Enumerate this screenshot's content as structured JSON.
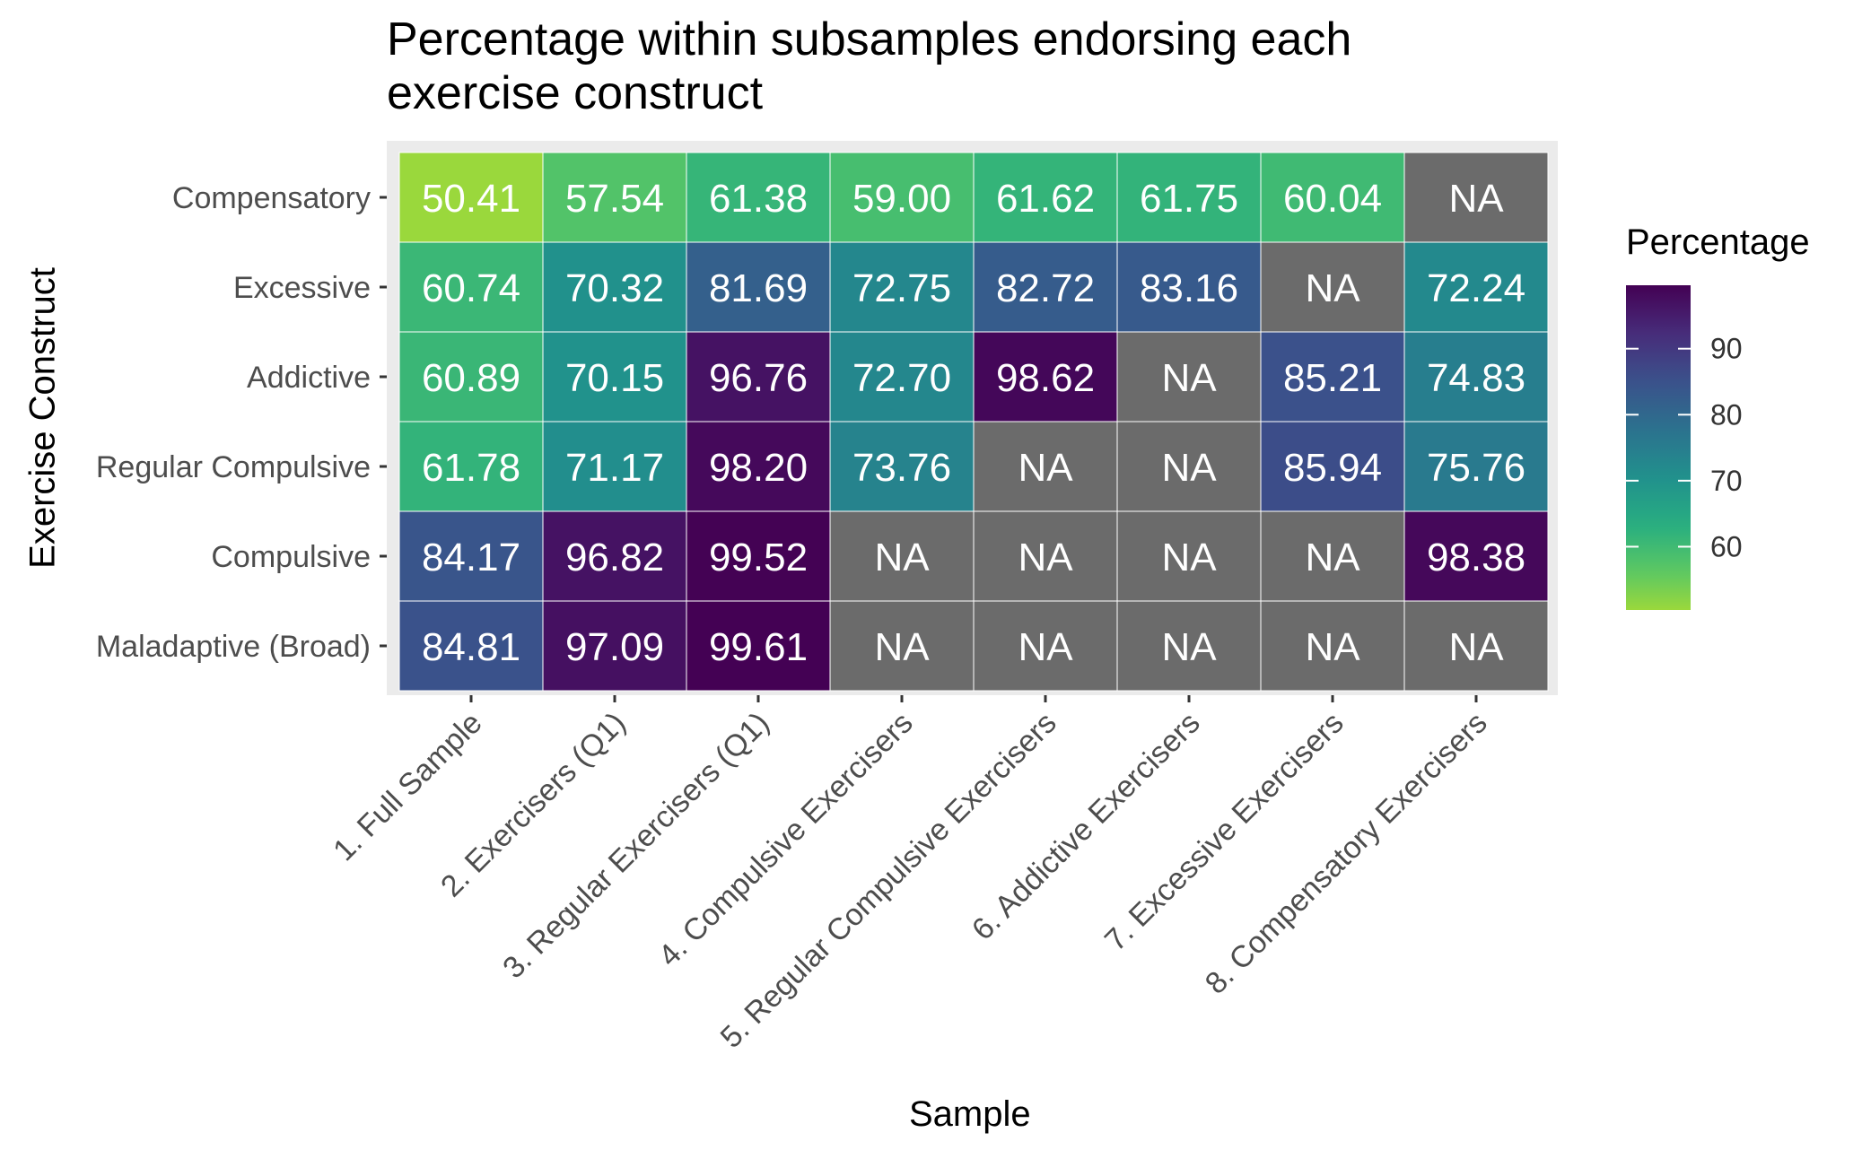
{
  "chart_data": {
    "type": "heatmap",
    "title": "Percentage within subsamples endorsing each exercise construct",
    "title_lines": [
      "Percentage within subsamples endorsing each",
      "exercise construct"
    ],
    "xlabel": "Sample",
    "ylabel": "Exercise Construct",
    "x_categories": [
      "1. Full Sample",
      "2. Exercisers (Q1)",
      "3. Regular Exercisers (Q1)",
      "4. Compulsive Exercisers",
      "5. Regular Compulsive Exercisers",
      "6. Addictive Exercisers",
      "7. Excessive Exercisers",
      "8. Compensatory Exercisers"
    ],
    "y_categories": [
      "Compensatory",
      "Excessive",
      "Addictive",
      "Regular Compulsive",
      "Compulsive",
      "Maladaptive (Broad)"
    ],
    "values": [
      [
        50.41,
        57.54,
        61.38,
        59.0,
        61.62,
        61.75,
        60.04,
        null
      ],
      [
        60.74,
        70.32,
        81.69,
        72.75,
        82.72,
        83.16,
        null,
        72.24
      ],
      [
        60.89,
        70.15,
        96.76,
        72.7,
        98.62,
        null,
        85.21,
        74.83
      ],
      [
        61.78,
        71.17,
        98.2,
        73.76,
        null,
        null,
        85.94,
        75.76
      ],
      [
        84.17,
        96.82,
        99.52,
        null,
        null,
        null,
        null,
        98.38
      ],
      [
        84.81,
        97.09,
        99.61,
        null,
        null,
        null,
        null,
        null
      ]
    ],
    "cell_labels": [
      [
        "50.41",
        "57.54",
        "61.38",
        "59.00",
        "61.62",
        "61.75",
        "60.04",
        "NA"
      ],
      [
        "60.74",
        "70.32",
        "81.69",
        "72.75",
        "82.72",
        "83.16",
        "NA",
        "72.24"
      ],
      [
        "60.89",
        "70.15",
        "96.76",
        "72.70",
        "98.62",
        "NA",
        "85.21",
        "74.83"
      ],
      [
        "61.78",
        "71.17",
        "98.20",
        "73.76",
        "NA",
        "NA",
        "85.94",
        "75.76"
      ],
      [
        "84.17",
        "96.82",
        "99.52",
        "NA",
        "NA",
        "NA",
        "NA",
        "98.38"
      ],
      [
        "84.81",
        "97.09",
        "99.61",
        "NA",
        "NA",
        "NA",
        "NA",
        "NA"
      ]
    ],
    "legend": {
      "title": "Percentage",
      "ticks": [
        60,
        70,
        80,
        90
      ],
      "range": [
        50.41,
        99.61
      ],
      "placement": "right"
    },
    "colors": {
      "scale": "viridis",
      "na_color": "#6b6b6b",
      "panel_background": "#ebebeb",
      "cell_text": "#ffffff"
    }
  }
}
